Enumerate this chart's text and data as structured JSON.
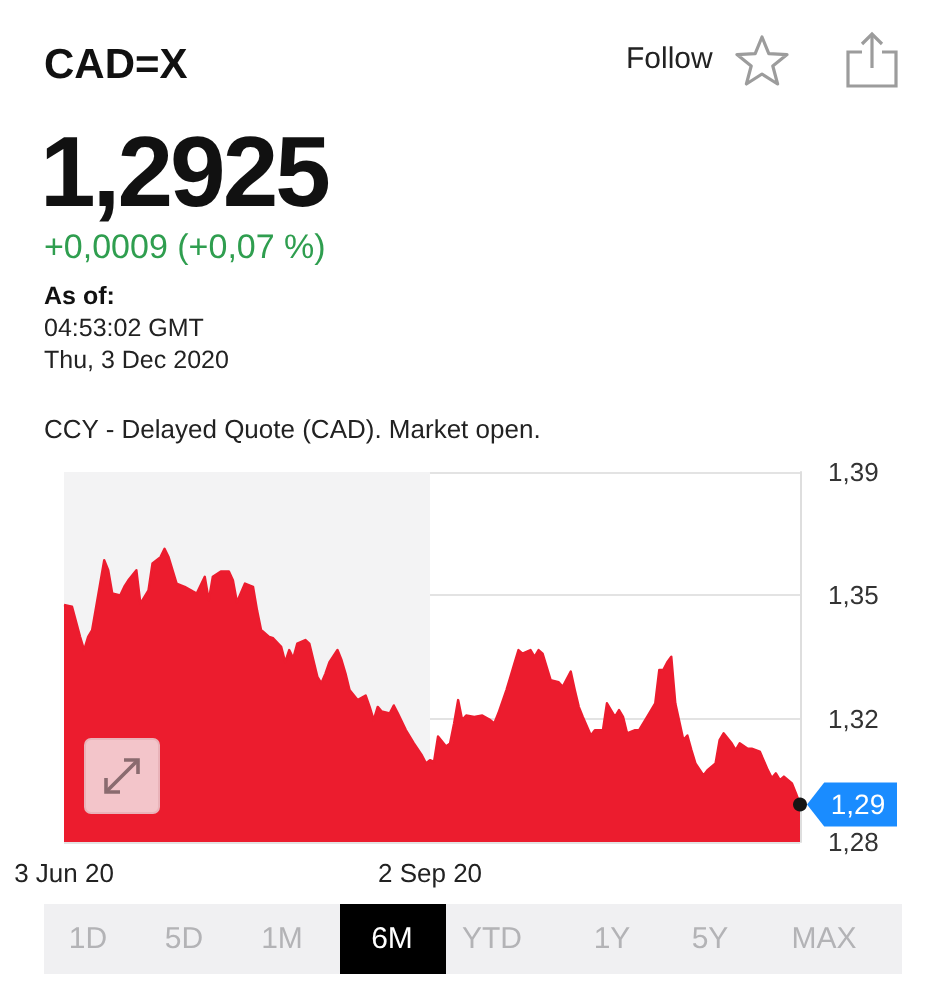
{
  "chart_data": {
    "type": "area",
    "title": "CAD=X",
    "subtitle": "1,2925",
    "annotations": [
      "+0,0009 (+0,07 %)",
      "As of:",
      "04:53:02 GMT",
      "Thu, 3 Dec 2020",
      "CCY - Delayed Quote (CAD). Market open.",
      "Follow",
      {
        "text": "1,29",
        "x": "2020-12-03",
        "y": 1.2925
      },
      "1D",
      "5D",
      "1M",
      "6M",
      "YTD",
      "1Y",
      "5Y",
      "MAX"
    ],
    "x": [
      "2020-06-03",
      "2020-06-05",
      "2020-06-07",
      "2020-06-08",
      "2020-06-09",
      "2020-06-10",
      "2020-06-12",
      "2020-06-13",
      "2020-06-14",
      "2020-06-15",
      "2020-06-17",
      "2020-06-18",
      "2020-06-19",
      "2020-06-21",
      "2020-06-22",
      "2020-06-24",
      "2020-06-25",
      "2020-06-27",
      "2020-06-28",
      "2020-06-29",
      "2020-06-30",
      "2020-07-01",
      "2020-07-03",
      "2020-07-05",
      "2020-07-06",
      "2020-07-08",
      "2020-07-09",
      "2020-07-10",
      "2020-07-12",
      "2020-07-14",
      "2020-07-15",
      "2020-07-16",
      "2020-07-18",
      "2020-07-20",
      "2020-07-21",
      "2020-07-22",
      "2020-07-24",
      "2020-07-25",
      "2020-07-27",
      "2020-07-28",
      "2020-07-29",
      "2020-07-30",
      "2020-07-31",
      "2020-08-02",
      "2020-08-03",
      "2020-08-05",
      "2020-08-06",
      "2020-08-07",
      "2020-08-08",
      "2020-08-10",
      "2020-08-11",
      "2020-08-12",
      "2020-08-13",
      "2020-08-15",
      "2020-08-17",
      "2020-08-18",
      "2020-08-19",
      "2020-08-20",
      "2020-08-21",
      "2020-08-23",
      "2020-08-24",
      "2020-08-25",
      "2020-08-27",
      "2020-08-29",
      "2020-08-31",
      "2020-09-01",
      "2020-09-02",
      "2020-09-03",
      "2020-09-04",
      "2020-09-06",
      "2020-09-07",
      "2020-09-08",
      "2020-09-09",
      "2020-09-10",
      "2020-09-11",
      "2020-09-13",
      "2020-09-15",
      "2020-09-17",
      "2020-09-18",
      "2020-09-19",
      "2020-09-21",
      "2020-09-22",
      "2020-09-23",
      "2020-09-24",
      "2020-09-25",
      "2020-09-27",
      "2020-09-28",
      "2020-09-29",
      "2020-09-30",
      "2020-10-01",
      "2020-10-02",
      "2020-10-04",
      "2020-10-05",
      "2020-10-07",
      "2020-10-08",
      "2020-10-09",
      "2020-10-10",
      "2020-10-12",
      "2020-10-13",
      "2020-10-15",
      "2020-10-16",
      "2020-10-18",
      "2020-10-19",
      "2020-10-20",
      "2020-10-21",
      "2020-10-23",
      "2020-10-24",
      "2020-10-26",
      "2020-10-27",
      "2020-10-28",
      "2020-10-29",
      "2020-10-30",
      "2020-10-31",
      "2020-11-01",
      "2020-11-02",
      "2020-11-04",
      "2020-11-05",
      "2020-11-06",
      "2020-11-07",
      "2020-11-09",
      "2020-11-10",
      "2020-11-12",
      "2020-11-13",
      "2020-11-14",
      "2020-11-16",
      "2020-11-17",
      "2020-11-18",
      "2020-11-20",
      "2020-11-21",
      "2020-11-23",
      "2020-11-25",
      "2020-11-26",
      "2020-11-27",
      "2020-11-28",
      "2020-11-29",
      "2020-12-01",
      "2020-12-02",
      "2020-12-03"
    ],
    "values": [
      1.3483,
      1.3478,
      1.3394,
      1.3357,
      1.3394,
      1.3413,
      1.3543,
      1.3608,
      1.358,
      1.3515,
      1.351,
      1.3534,
      1.3552,
      1.358,
      1.3487,
      1.3524,
      1.3599,
      1.3617,
      1.364,
      1.3617,
      1.358,
      1.3543,
      1.3534,
      1.3521,
      1.3515,
      1.3562,
      1.3496,
      1.3562,
      1.3577,
      1.3577,
      1.3552,
      1.3491,
      1.3543,
      1.3534,
      1.3468,
      1.3413,
      1.3394,
      1.339,
      1.3366,
      1.3323,
      1.3357,
      1.3334,
      1.3375,
      1.3385,
      1.3375,
      1.3282,
      1.3264,
      1.3291,
      1.3323,
      1.3357,
      1.3329,
      1.3291,
      1.3245,
      1.3217,
      1.323,
      1.3198,
      1.3161,
      1.3198,
      1.3185,
      1.318,
      1.3202,
      1.318,
      1.3133,
      1.3096,
      1.3062,
      1.304,
      1.3049,
      1.3044,
      1.3115,
      1.3087,
      1.3096,
      1.3152,
      1.3217,
      1.3161,
      1.3174,
      1.317,
      1.3174,
      1.3161,
      1.3152,
      1.318,
      1.3245,
      1.3282,
      1.332,
      1.3357,
      1.3347,
      1.3357,
      1.3338,
      1.3357,
      1.3347,
      1.331,
      1.3273,
      1.3267,
      1.3254,
      1.3297,
      1.3245,
      1.3198,
      1.317,
      1.3118,
      1.3133,
      1.3133,
      1.3208,
      1.317,
      1.3189,
      1.317,
      1.3124,
      1.3133,
      1.3133,
      1.317,
      1.3189,
      1.3208,
      1.3301,
      1.3301,
      1.3323,
      1.3338,
      1.3208,
      1.3105,
      1.3118,
      1.3077,
      1.304,
      1.3006,
      1.3021,
      1.304,
      1.3105,
      1.3124,
      1.3096,
      1.3077,
      1.3096,
      1.3081,
      1.3081,
      1.3073,
      1.3021,
      1.2999,
      1.3012,
      1.2993,
      1.3003,
      1.2984,
      1.2956,
      1.2925
    ],
    "color": "#ec1c2e",
    "xlim": [
      "2020-06-03",
      "2020-12-03"
    ],
    "xticks": [
      {
        "value": "2020-06-03",
        "label": "3 Jun 20"
      },
      {
        "value": "2020-09-02",
        "label": "2 Sep 20"
      }
    ],
    "ylim": [
      1.282,
      1.3855
    ],
    "yticks": [
      {
        "value": 1.282,
        "label": "1,28"
      },
      {
        "value": 1.3165,
        "label": "1,32"
      },
      {
        "value": 1.351,
        "label": "1,35"
      },
      {
        "value": 1.3855,
        "label": "1,39"
      }
    ],
    "bands": [
      {
        "axis": "x",
        "from": "2020-06-03",
        "to": "2020-09-02",
        "color": "#f3f3f4"
      }
    ],
    "grid": "y"
  }
}
